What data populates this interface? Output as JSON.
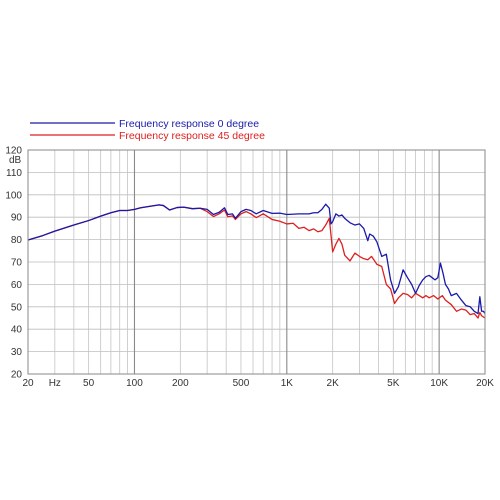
{
  "chart_data": {
    "type": "line",
    "xscale": "log",
    "xlim": [
      20,
      20000
    ],
    "ylim": [
      20,
      120
    ],
    "grid": true,
    "legend_position": "top-left",
    "ylabel": "dB",
    "xlabel": "",
    "title": "",
    "y_ticks": [
      "120",
      "110",
      "100",
      "90",
      "80",
      "70",
      "60",
      "50",
      "40",
      "30",
      "20"
    ],
    "x_ticks": [
      {
        "value": 20,
        "label": "20"
      },
      {
        "value": 30,
        "label": "Hz"
      },
      {
        "value": 50,
        "label": "50"
      },
      {
        "value": 100,
        "label": "100"
      },
      {
        "value": 200,
        "label": "200"
      },
      {
        "value": 500,
        "label": "500"
      },
      {
        "value": 1000,
        "label": "1K"
      },
      {
        "value": 2000,
        "label": "2K"
      },
      {
        "value": 5000,
        "label": "5K"
      },
      {
        "value": 10000,
        "label": "10K"
      },
      {
        "value": 20000,
        "label": "20K"
      }
    ],
    "series": [
      {
        "name": "Frequency response 0 degree",
        "color": "#1a1aaa",
        "points": [
          [
            20,
            79.8
          ],
          [
            25,
            81.8
          ],
          [
            30,
            83.8
          ],
          [
            40,
            86.5
          ],
          [
            50,
            88.5
          ],
          [
            60,
            90.5
          ],
          [
            70,
            92
          ],
          [
            80,
            93
          ],
          [
            90,
            93
          ],
          [
            100,
            93.5
          ],
          [
            110,
            94.2
          ],
          [
            130,
            95
          ],
          [
            145,
            95.5
          ],
          [
            155,
            95.2
          ],
          [
            170,
            93.2
          ],
          [
            190,
            94.3
          ],
          [
            210,
            94.5
          ],
          [
            240,
            93.8
          ],
          [
            270,
            94
          ],
          [
            300,
            93.5
          ],
          [
            330,
            91.2
          ],
          [
            360,
            92.2
          ],
          [
            390,
            94.2
          ],
          [
            410,
            91.2
          ],
          [
            440,
            91.5
          ],
          [
            460,
            89.5
          ],
          [
            500,
            92.5
          ],
          [
            540,
            93.5
          ],
          [
            580,
            93
          ],
          [
            630,
            91.5
          ],
          [
            700,
            93
          ],
          [
            800,
            91.7
          ],
          [
            900,
            91.8
          ],
          [
            1000,
            91.2
          ],
          [
            1200,
            91.5
          ],
          [
            1400,
            91.5
          ],
          [
            1500,
            92
          ],
          [
            1600,
            92
          ],
          [
            1700,
            93.5
          ],
          [
            1800,
            95.8
          ],
          [
            1900,
            94
          ],
          [
            1950,
            87
          ],
          [
            2000,
            88
          ],
          [
            2100,
            91.5
          ],
          [
            2200,
            90.5
          ],
          [
            2300,
            91
          ],
          [
            2400,
            89.5
          ],
          [
            2600,
            87.5
          ],
          [
            2800,
            86.5
          ],
          [
            3000,
            87
          ],
          [
            3200,
            85
          ],
          [
            3400,
            79.5
          ],
          [
            3500,
            82.5
          ],
          [
            3700,
            81.5
          ],
          [
            3900,
            79
          ],
          [
            4200,
            72.5
          ],
          [
            4500,
            73.5
          ],
          [
            4800,
            62
          ],
          [
            5100,
            56
          ],
          [
            5400,
            59
          ],
          [
            5800,
            66.5
          ],
          [
            6200,
            63
          ],
          [
            6600,
            60
          ],
          [
            7000,
            56
          ],
          [
            7400,
            59.5
          ],
          [
            7800,
            62
          ],
          [
            8200,
            63.5
          ],
          [
            8600,
            64
          ],
          [
            9000,
            63
          ],
          [
            9400,
            62
          ],
          [
            9800,
            63
          ],
          [
            10200,
            69.5
          ],
          [
            10600,
            65
          ],
          [
            11000,
            60
          ],
          [
            11500,
            58
          ],
          [
            12000,
            55
          ],
          [
            13000,
            56
          ],
          [
            14000,
            53
          ],
          [
            15000,
            50.5
          ],
          [
            16000,
            50
          ],
          [
            17000,
            48
          ],
          [
            18000,
            47
          ],
          [
            18500,
            54.5
          ],
          [
            19000,
            48
          ],
          [
            19500,
            48
          ],
          [
            20000,
            47
          ]
        ]
      },
      {
        "name": "Frequency response 45 degree",
        "color": "#dd2020",
        "points": [
          [
            20,
            79.8
          ],
          [
            25,
            81.8
          ],
          [
            30,
            83.8
          ],
          [
            40,
            86.5
          ],
          [
            50,
            88.5
          ],
          [
            60,
            90.5
          ],
          [
            70,
            92
          ],
          [
            80,
            93
          ],
          [
            90,
            93
          ],
          [
            100,
            93.5
          ],
          [
            110,
            94.2
          ],
          [
            130,
            95
          ],
          [
            145,
            95.5
          ],
          [
            155,
            95.2
          ],
          [
            170,
            93.2
          ],
          [
            190,
            94.3
          ],
          [
            210,
            94.5
          ],
          [
            240,
            93.8
          ],
          [
            270,
            94
          ],
          [
            300,
            92.5
          ],
          [
            330,
            90.3
          ],
          [
            360,
            91.5
          ],
          [
            390,
            93.2
          ],
          [
            410,
            90.2
          ],
          [
            440,
            90.6
          ],
          [
            460,
            89
          ],
          [
            500,
            91.5
          ],
          [
            540,
            92.5
          ],
          [
            580,
            91.5
          ],
          [
            630,
            89.8
          ],
          [
            700,
            91.5
          ],
          [
            800,
            89
          ],
          [
            900,
            88.2
          ],
          [
            1000,
            87
          ],
          [
            1100,
            87.3
          ],
          [
            1200,
            85
          ],
          [
            1300,
            85.5
          ],
          [
            1400,
            84
          ],
          [
            1500,
            84.8
          ],
          [
            1600,
            83.5
          ],
          [
            1700,
            84
          ],
          [
            1800,
            86.5
          ],
          [
            1900,
            89.5
          ],
          [
            1950,
            82
          ],
          [
            2000,
            74.5
          ],
          [
            2100,
            78
          ],
          [
            2200,
            80.5
          ],
          [
            2300,
            78
          ],
          [
            2400,
            73
          ],
          [
            2600,
            70.5
          ],
          [
            2800,
            74
          ],
          [
            3000,
            72.5
          ],
          [
            3200,
            71.5
          ],
          [
            3400,
            71
          ],
          [
            3600,
            72.5
          ],
          [
            3900,
            69
          ],
          [
            4200,
            68
          ],
          [
            4500,
            60
          ],
          [
            4800,
            58
          ],
          [
            5100,
            51.5
          ],
          [
            5400,
            54
          ],
          [
            5800,
            56
          ],
          [
            6200,
            55.5
          ],
          [
            6600,
            54
          ],
          [
            7000,
            56
          ],
          [
            7400,
            55
          ],
          [
            7800,
            54
          ],
          [
            8200,
            55
          ],
          [
            8600,
            54
          ],
          [
            9200,
            55
          ],
          [
            9800,
            53.5
          ],
          [
            10500,
            55
          ],
          [
            11000,
            53
          ],
          [
            12000,
            51
          ],
          [
            13000,
            48
          ],
          [
            14000,
            49
          ],
          [
            15000,
            48.5
          ],
          [
            16000,
            46.5
          ],
          [
            17000,
            47
          ],
          [
            18000,
            45
          ],
          [
            18500,
            47.5
          ],
          [
            19000,
            46
          ],
          [
            19500,
            45.5
          ],
          [
            20000,
            45
          ]
        ]
      }
    ]
  }
}
